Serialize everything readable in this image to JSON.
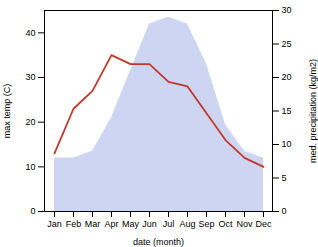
{
  "chart_data": {
    "type": "line",
    "xlabel": "date (month)",
    "ylabel": "max temp (C)",
    "y2label": "med. precipitation (kg/m2)",
    "categories": [
      "Jan",
      "Feb",
      "Mar",
      "Apr",
      "May",
      "Jun",
      "Jul",
      "Aug",
      "Sep",
      "Oct",
      "Nov",
      "Dec"
    ],
    "series": [
      {
        "type": "area",
        "axis": "y2",
        "color": "#c5cef0",
        "values": [
          8,
          8,
          9,
          14,
          21,
          28,
          29,
          28,
          22,
          13,
          9,
          8
        ]
      },
      {
        "type": "line",
        "color": "#c0392b",
        "values": [
          13,
          23,
          27,
          35,
          33,
          33,
          29,
          28,
          22,
          16,
          12,
          10
        ]
      }
    ],
    "ylim": [
      0,
      45
    ],
    "yticks": [
      0,
      10,
      20,
      30,
      40
    ],
    "y2lim": [
      0,
      30
    ],
    "y2ticks": [
      0,
      5,
      10,
      15,
      20,
      25,
      30
    ],
    "grid": false
  }
}
